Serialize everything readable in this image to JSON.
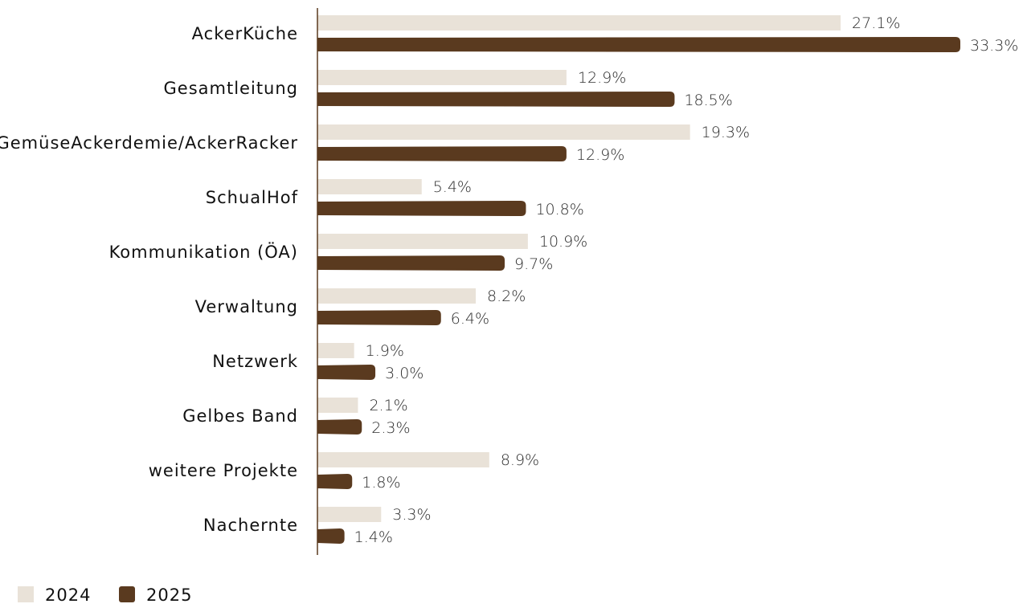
{
  "chart_data": {
    "type": "bar",
    "orientation": "horizontal",
    "categories": [
      "AckerKüche",
      "Gesamtleitung",
      "GemüseAckerdemie/AckerRacker",
      "SchualHof",
      "Kommunikation (ÖA)",
      "Verwaltung",
      "Netzwerk",
      "Gelbes Band",
      "weitere Projekte",
      "Nacherntе"
    ],
    "series": [
      {
        "name": "2024",
        "color": "#e9e2d8",
        "values": [
          27.1,
          12.9,
          19.3,
          5.4,
          10.9,
          8.2,
          1.9,
          2.1,
          8.9,
          3.3
        ],
        "labels": [
          "27.1%",
          "12.9%",
          "19.3%",
          "5.4%",
          "10.9%",
          "8.2%",
          "1.9%",
          "2.1%",
          "8.9%",
          "3.3%"
        ]
      },
      {
        "name": "2025",
        "color": "#5a3a1f",
        "values": [
          33.3,
          18.5,
          12.9,
          10.8,
          9.7,
          6.4,
          3.0,
          2.3,
          1.8,
          1.4
        ],
        "labels": [
          "33.3%",
          "18.5%",
          "12.9%",
          "10.8%",
          "9.7%",
          "6.4%",
          "3.0%",
          "2.3%",
          "1.8%",
          "1.4%"
        ]
      }
    ],
    "xlim": [
      0,
      33.3
    ],
    "legend": "bottom-left",
    "grid": false
  }
}
